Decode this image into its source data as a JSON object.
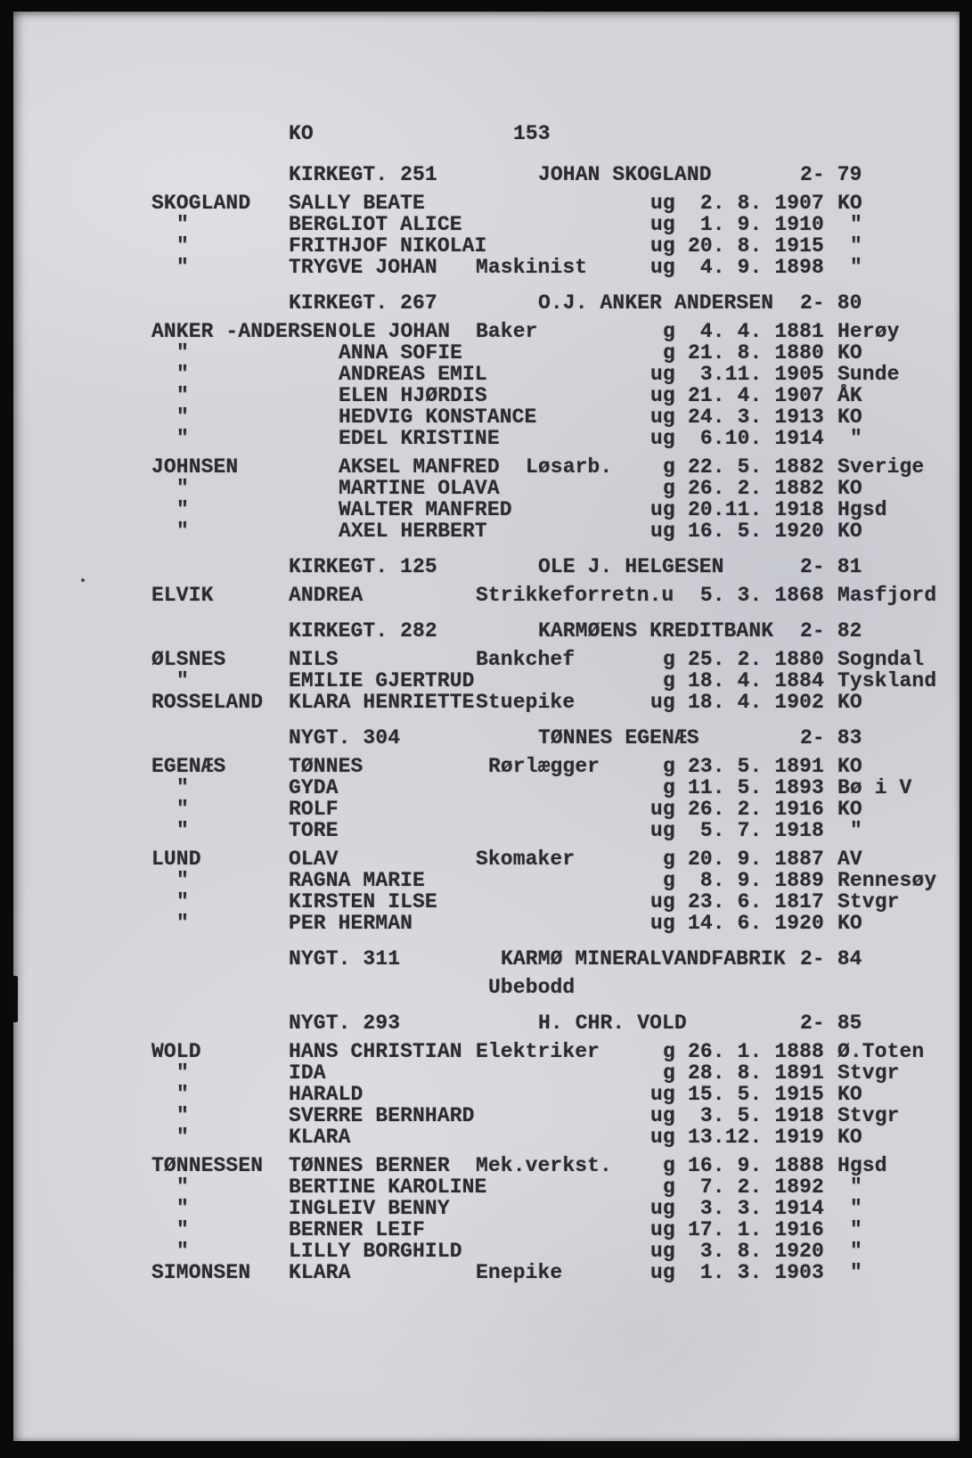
{
  "page": {
    "district_code": "KO",
    "page_number": "153"
  },
  "colors": {
    "paper": "#d2d4d9",
    "ink": "#2a2b30",
    "frame": "#0a0a09"
  },
  "sections": [
    {
      "address": "KIRKEGT. 251",
      "owner": "JOHAN SKOGLAND",
      "number": "2- 79",
      "families": [
        {
          "rows": [
            {
              "surname": "SKOGLAND",
              "given": "SALLY BEATE",
              "occupation": "",
              "status": "ug",
              "date": " 2. 8. 1907",
              "place": "KO"
            },
            {
              "surname": "\"",
              "given": "BERGLIOT ALICE",
              "occupation": "",
              "status": "ug",
              "date": " 1. 9. 1910",
              "place": "\""
            },
            {
              "surname": "\"",
              "given": "FRITHJOF NIKOLAI",
              "occupation": "",
              "status": "ug",
              "date": "20. 8. 1915",
              "place": "\""
            },
            {
              "surname": "\"",
              "given": "TRYGVE JOHAN",
              "occupation": "Maskinist",
              "status": "ug",
              "date": " 4. 9. 1898",
              "place": "\""
            }
          ]
        }
      ]
    },
    {
      "address": "KIRKEGT. 267",
      "owner": "O.J. ANKER ANDERSEN",
      "number": "2- 80",
      "wide_given": true,
      "families": [
        {
          "rows": [
            {
              "surname": "ANKER -ANDERSEN",
              "given": "OLE JOHAN",
              "occupation": "Baker",
              "status": "g",
              "date": " 4. 4. 1881",
              "place": "Herøy"
            },
            {
              "surname": "\"",
              "given": "ANNA SOFIE",
              "occupation": "",
              "status": "g",
              "date": "21. 8. 1880",
              "place": "KO"
            },
            {
              "surname": "\"",
              "given": "ANDREAS EMIL",
              "occupation": "",
              "status": "ug",
              "date": " 3.11. 1905",
              "place": "Sunde"
            },
            {
              "surname": "\"",
              "given": "ELEN HJØRDIS",
              "occupation": "",
              "status": "ug",
              "date": "21. 4. 1907",
              "place": "ÅK"
            },
            {
              "surname": "\"",
              "given": "HEDVIG KONSTANCE",
              "occupation": "",
              "status": "ug",
              "date": "24. 3. 1913",
              "place": "KO"
            },
            {
              "surname": "\"",
              "given": "EDEL KRISTINE",
              "occupation": "",
              "status": "ug",
              "date": " 6.10. 1914",
              "place": "\""
            }
          ]
        },
        {
          "rows": [
            {
              "surname": "JOHNSEN",
              "given": "AKSEL MANFRED",
              "occupation": "Løsarb.",
              "occ_col": 30,
              "status": "g",
              "date": "22. 5. 1882",
              "place": "Sverige"
            },
            {
              "surname": "\"",
              "given": "MARTINE OLAVA",
              "occupation": "",
              "status": "g",
              "date": "26. 2. 1882",
              "place": "KO"
            },
            {
              "surname": "\"",
              "given": "WALTER MANFRED",
              "occupation": "",
              "status": "ug",
              "date": "20.11. 1918",
              "place": "Hgsd"
            },
            {
              "surname": "\"",
              "given": "AXEL HERBERT",
              "occupation": "",
              "status": "ug",
              "date": "16. 5. 1920",
              "place": "KO"
            }
          ]
        }
      ]
    },
    {
      "address": "KIRKEGT. 125",
      "owner": "OLE J. HELGESEN",
      "number": "2- 81",
      "families": [
        {
          "rows": [
            {
              "surname": "ELVIK",
              "given": "ANDREA",
              "occupation": "Strikkeforretn.u",
              "status": "",
              "date": " 5. 3. 1868",
              "place": "Masfjord"
            }
          ]
        }
      ]
    },
    {
      "address": "KIRKEGT. 282",
      "owner": "KARMØENS KREDITBANK",
      "number": "2- 82",
      "families": [
        {
          "rows": [
            {
              "surname": "ØLSNES",
              "given": "NILS",
              "occupation": "Bankchef",
              "status": "g",
              "date": "25. 2. 1880",
              "place": "Sogndal"
            },
            {
              "surname": "\"",
              "given": "EMILIE GJERTRUD",
              "occupation": "",
              "status": "g",
              "date": "18. 4. 1884",
              "place": "Tyskland"
            },
            {
              "surname": "ROSSELAND",
              "given": "KLARA HENRIETTE",
              "occupation": "Stuepike",
              "status": "ug",
              "date": "18. 4. 1902",
              "place": "KO"
            }
          ]
        }
      ]
    },
    {
      "address": "NYGT. 304",
      "owner": "TØNNES EGENÆS",
      "number": "2- 83",
      "families": [
        {
          "rows": [
            {
              "surname": "EGENÆS",
              "given": "TØNNES",
              "occupation": "Rørlægger",
              "occ_col": 27,
              "status": "g",
              "date": "23. 5. 1891",
              "place": "KO"
            },
            {
              "surname": "\"",
              "given": "GYDA",
              "occupation": "",
              "status": "g",
              "date": "11. 5. 1893",
              "place": "Bø i V"
            },
            {
              "surname": "\"",
              "given": "ROLF",
              "occupation": "",
              "status": "ug",
              "date": "26. 2. 1916",
              "place": "KO"
            },
            {
              "surname": "\"",
              "given": "TORE",
              "occupation": "",
              "status": "ug",
              "date": " 5. 7. 1918",
              "place": "\""
            }
          ]
        },
        {
          "rows": [
            {
              "surname": "LUND",
              "given": "OLAV",
              "occupation": "Skomaker",
              "status": "g",
              "date": "20. 9. 1887",
              "place": "AV"
            },
            {
              "surname": "\"",
              "given": "RAGNA MARIE",
              "occupation": "",
              "status": "g",
              "date": " 8. 9. 1889",
              "place": "Rennesøy"
            },
            {
              "surname": "\"",
              "given": "KIRSTEN ILSE",
              "occupation": "",
              "status": "ug",
              "date": "23. 6. 1817",
              "place": "Stvgr"
            },
            {
              "surname": "\"",
              "given": "PER HERMAN",
              "occupation": "",
              "status": "ug",
              "date": "14. 6. 1920",
              "place": "KO"
            }
          ]
        }
      ]
    },
    {
      "address": "NYGT. 311",
      "owner": "KARMØ MINERALVANDFABRIK",
      "number": "2- 84",
      "owner_col": 28,
      "note": "Ubebodd",
      "families": []
    },
    {
      "address": "NYGT. 293",
      "owner": "H. CHR. VOLD",
      "number": "2- 85",
      "families": [
        {
          "rows": [
            {
              "surname": "WOLD",
              "given": "HANS CHRISTIAN",
              "occupation": "Elektriker",
              "status": "g",
              "date": "26. 1. 1888",
              "place": "Ø.Toten"
            },
            {
              "surname": "\"",
              "given": "IDA",
              "occupation": "",
              "status": "g",
              "date": "28. 8. 1891",
              "place": "Stvgr"
            },
            {
              "surname": "\"",
              "given": "HARALD",
              "occupation": "",
              "status": "ug",
              "date": "15. 5. 1915",
              "place": "KO"
            },
            {
              "surname": "\"",
              "given": "SVERRE BERNHARD",
              "occupation": "",
              "status": "ug",
              "date": " 3. 5. 1918",
              "place": "Stvgr"
            },
            {
              "surname": "\"",
              "given": "KLARA",
              "occupation": "",
              "status": "ug",
              "date": "13.12. 1919",
              "place": "KO"
            }
          ]
        },
        {
          "rows": [
            {
              "surname": "TØNNESSEN",
              "given": "TØNNES BERNER",
              "occupation": "Mek.verkst.",
              "status": "g",
              "date": "16. 9. 1888",
              "place": "Hgsd"
            },
            {
              "surname": "\"",
              "given": "BERTINE KAROLINE",
              "occupation": "",
              "status": "g",
              "date": " 7. 2. 1892",
              "place": "\""
            },
            {
              "surname": "\"",
              "given": "INGLEIV BENNY",
              "occupation": "",
              "status": "ug",
              "date": " 3. 3. 1914",
              "place": "\""
            },
            {
              "surname": "\"",
              "given": "BERNER LEIF",
              "occupation": "",
              "status": "ug",
              "date": "17. 1. 1916",
              "place": "\""
            },
            {
              "surname": "\"",
              "given": "LILLY BORGHILD",
              "occupation": "",
              "status": "ug",
              "date": " 3. 8. 1920",
              "place": "\""
            },
            {
              "surname": "SIMONSEN",
              "given": "KLARA",
              "occupation": "Enepike",
              "status": "ug",
              "date": " 1. 3. 1903",
              "place": "\""
            }
          ]
        }
      ]
    }
  ]
}
